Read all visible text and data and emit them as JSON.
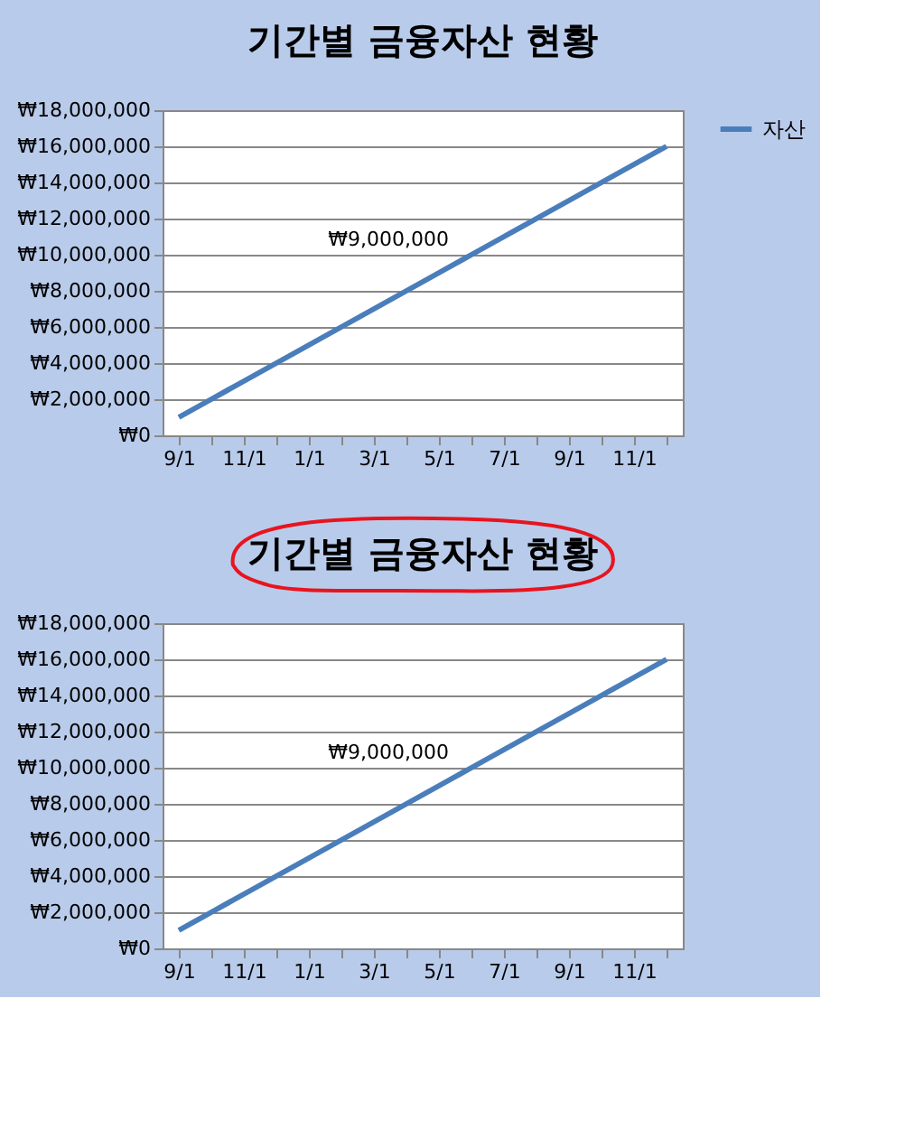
{
  "chart_data": [
    {
      "type": "line",
      "title": "기간별 금융자산 현황",
      "categories": [
        "9/1",
        null,
        "11/1",
        null,
        "1/1",
        null,
        "3/1",
        null,
        "5/1",
        null,
        "7/1",
        null,
        "9/1",
        null,
        "11/1",
        null
      ],
      "series": [
        {
          "name": "자산",
          "color": "#4a7ebb",
          "values": [
            1000000,
            2000000,
            3000000,
            4000000,
            5000000,
            6000000,
            7000000,
            8000000,
            9000000,
            10000000,
            11000000,
            12000000,
            13000000,
            14000000,
            15000000,
            16000000
          ],
          "value_labels": [
            null,
            null,
            null,
            null,
            null,
            null,
            null,
            null,
            "₩9,000,000",
            null,
            null,
            null,
            null,
            null,
            null,
            null
          ]
        }
      ],
      "ylim": [
        0,
        18000000
      ],
      "yticks": [
        {
          "value": 0,
          "label": "₩0"
        },
        {
          "value": 2000000,
          "label": "₩2,000,000"
        },
        {
          "value": 4000000,
          "label": "₩4,000,000"
        },
        {
          "value": 6000000,
          "label": "₩6,000,000"
        },
        {
          "value": 8000000,
          "label": "₩8,000,000"
        },
        {
          "value": 10000000,
          "label": "₩10,000,000"
        },
        {
          "value": 12000000,
          "label": "₩12,000,000"
        },
        {
          "value": 14000000,
          "label": "₩14,000,000"
        },
        {
          "value": 16000000,
          "label": "₩16,000,000"
        },
        {
          "value": 18000000,
          "label": "₩18,000,000"
        }
      ],
      "grid": "y",
      "legend": "right",
      "marker": "none",
      "line_style": "solid"
    },
    {
      "type": "line",
      "title": "기간별 금융자산 현황",
      "categories": [
        "9/1",
        null,
        "11/1",
        null,
        "1/1",
        null,
        "3/1",
        null,
        "5/1",
        null,
        "7/1",
        null,
        "9/1",
        null,
        "11/1",
        null
      ],
      "series": [
        {
          "name": "자산",
          "color": "#4a7ebb",
          "values": [
            1000000,
            2000000,
            3000000,
            4000000,
            5000000,
            6000000,
            7000000,
            8000000,
            9000000,
            10000000,
            11000000,
            12000000,
            13000000,
            14000000,
            15000000,
            16000000
          ],
          "value_labels": [
            null,
            null,
            null,
            null,
            null,
            null,
            null,
            null,
            "₩9,000,000",
            null,
            null,
            null,
            null,
            null,
            null,
            null
          ]
        }
      ],
      "ylim": [
        0,
        18000000
      ],
      "yticks": [
        {
          "value": 0,
          "label": "₩0"
        },
        {
          "value": 2000000,
          "label": "₩2,000,000"
        },
        {
          "value": 4000000,
          "label": "₩4,000,000"
        },
        {
          "value": 6000000,
          "label": "₩6,000,000"
        },
        {
          "value": 8000000,
          "label": "₩8,000,000"
        },
        {
          "value": 10000000,
          "label": "₩10,000,000"
        },
        {
          "value": 12000000,
          "label": "₩12,000,000"
        },
        {
          "value": 14000000,
          "label": "₩14,000,000"
        },
        {
          "value": 16000000,
          "label": "₩16,000,000"
        },
        {
          "value": 18000000,
          "label": "₩18,000,000"
        }
      ],
      "grid": "y",
      "legend": "right",
      "marker": "none",
      "line_style": "solid"
    }
  ]
}
